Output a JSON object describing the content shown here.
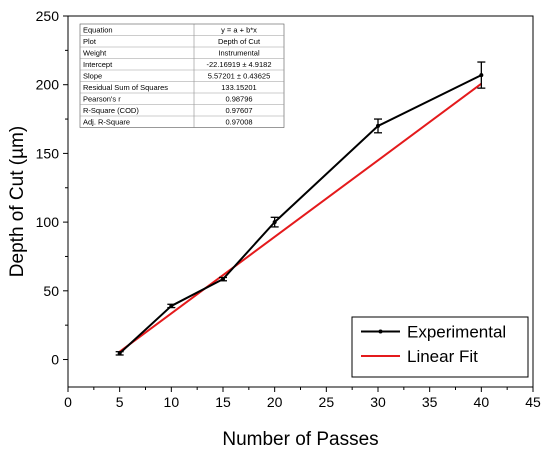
{
  "chart_data": {
    "type": "line",
    "xlabel": "Number of Passes",
    "ylabel": "Depth of Cut (µm)",
    "xlim": [
      0,
      45
    ],
    "ylim": [
      -20,
      250
    ],
    "x_ticks": [
      "0",
      "5",
      "10",
      "15",
      "20",
      "25",
      "30",
      "35",
      "40",
      "45"
    ],
    "y_ticks": [
      "0",
      "50",
      "100",
      "150",
      "200",
      "250"
    ],
    "series": [
      {
        "name": "Experimental",
        "color": "#000000",
        "marker": "dot",
        "x": [
          5,
          10,
          15,
          20,
          30,
          40
        ],
        "y": [
          4.5,
          39,
          58.5,
          100,
          170,
          207
        ],
        "err": [
          1.2,
          1.2,
          1.2,
          3.5,
          5.0,
          9.5
        ]
      },
      {
        "name": "Linear Fit",
        "color": "#e41a1c",
        "x": [
          5,
          40
        ],
        "y": [
          5.69,
          200.71
        ]
      }
    ],
    "legend": {
      "placement": "bottom-right"
    },
    "fit_table": {
      "rows": [
        [
          "Equation",
          "y = a + b*x"
        ],
        [
          "Plot",
          "Depth of Cut"
        ],
        [
          "Weight",
          "Instrumental"
        ],
        [
          "Intercept",
          "-22.16919 ± 4.9182"
        ],
        [
          "Slope",
          "5.57201 ± 0.43625"
        ],
        [
          "Residual Sum of Squares",
          "133.15201"
        ],
        [
          "Pearson's r",
          "0.98796"
        ],
        [
          "R-Square (COD)",
          "0.97607"
        ],
        [
          "Adj. R-Square",
          "0.97008"
        ]
      ]
    }
  }
}
